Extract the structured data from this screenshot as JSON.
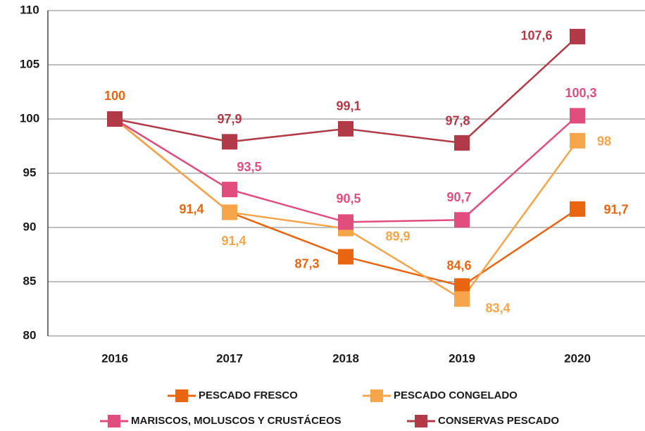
{
  "chart_data": {
    "type": "line",
    "categories": [
      "2016",
      "2017",
      "2018",
      "2019",
      "2020"
    ],
    "ylim": [
      80,
      110
    ],
    "yticks": [
      80,
      85,
      90,
      95,
      100,
      105,
      110
    ],
    "grid": true,
    "series": [
      {
        "name": "PESCADO FRESCO",
        "color": "#ea6510",
        "values": [
          100,
          91.4,
          87.3,
          84.6,
          91.7
        ],
        "value_labels": [
          "100",
          "91,4",
          "87,3",
          "84,6",
          "91,7"
        ]
      },
      {
        "name": "PESCADO CONGELADO",
        "color": "#f6a54a",
        "values": [
          100,
          91.4,
          89.9,
          83.4,
          98
        ],
        "value_labels": [
          null,
          "91,4",
          "89,9",
          "83,4",
          "98"
        ]
      },
      {
        "name": "MARISCOS, MOLUSCOS Y CRUSTÁCEOS",
        "color": "#e14d7c",
        "values": [
          100,
          93.5,
          90.5,
          90.7,
          100.3
        ],
        "value_labels": [
          null,
          "93,5",
          "90,5",
          "90,7",
          "100,3"
        ]
      },
      {
        "name": "CONSERVAS PESCADO",
        "color": "#b23a48",
        "values": [
          100,
          97.9,
          99.1,
          97.8,
          107.6
        ],
        "value_labels": [
          null,
          "97,9",
          "99,1",
          "97,8",
          "107,6"
        ]
      }
    ]
  }
}
